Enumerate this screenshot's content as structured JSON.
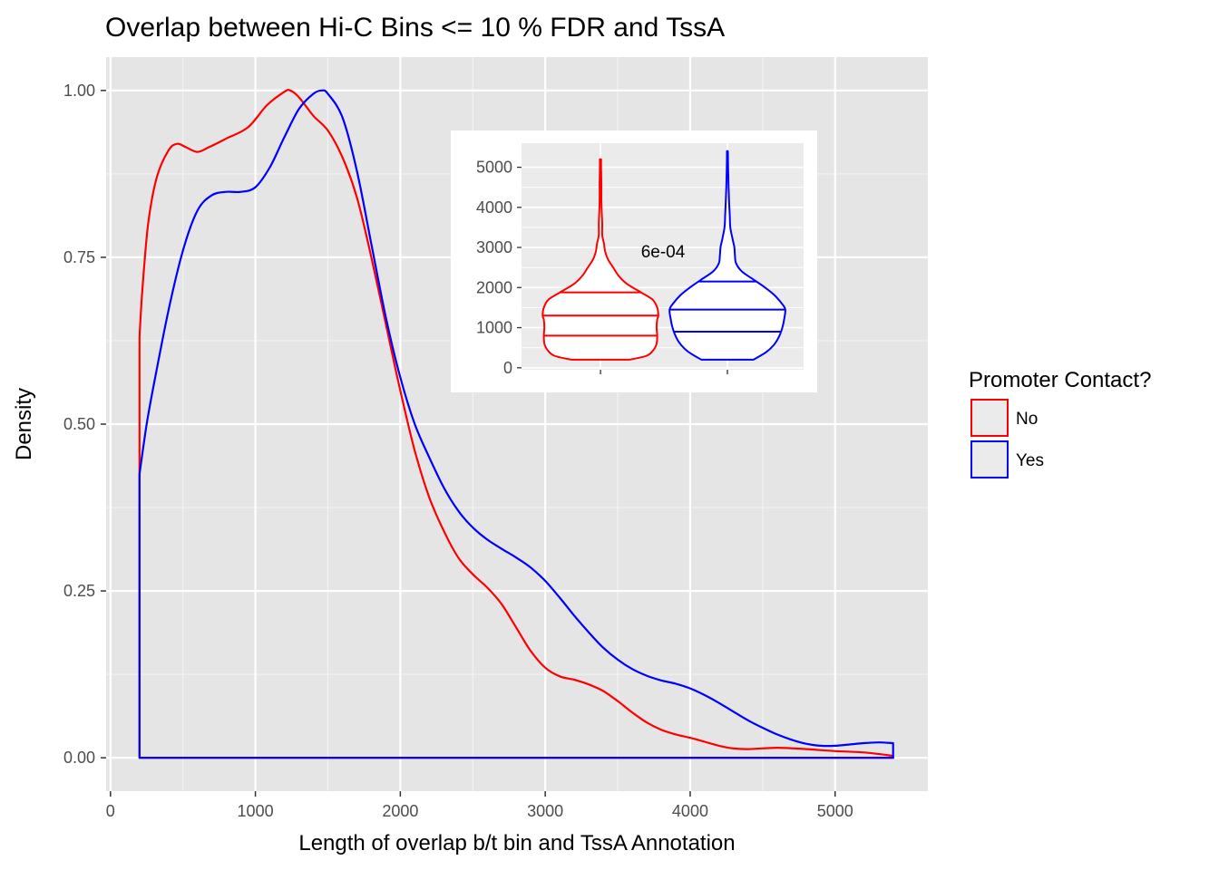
{
  "chart_data": [
    {
      "type": "area",
      "title": "Overlap between Hi-C Bins <= 10 % FDR and TssA",
      "xlabel": "Length of overlap b/t bin and TssA Annotation",
      "ylabel": "Density",
      "xlim": [
        -30,
        5640
      ],
      "ylim": [
        -0.05,
        1.05
      ],
      "xticks": [
        0,
        1000,
        2000,
        3000,
        4000,
        5000
      ],
      "yticks": [
        0.0,
        0.25,
        0.5,
        0.75,
        1.0
      ],
      "xtick_labels": [
        "0",
        "1000",
        "2000",
        "3000",
        "4000",
        "5000"
      ],
      "ytick_labels": [
        "0.00",
        "0.25",
        "0.50",
        "0.75",
        "1.00"
      ],
      "grid": true,
      "background": "#e5e5e5",
      "series": [
        {
          "name": "No",
          "color": "#ff0000",
          "x": [
            200,
            220,
            260,
            320,
            400,
            460,
            520,
            600,
            680,
            800,
            950,
            1080,
            1200,
            1240,
            1300,
            1400,
            1500,
            1600,
            1700,
            1800,
            1900,
            2000,
            2100,
            2200,
            2300,
            2400,
            2500,
            2600,
            2700,
            2800,
            2900,
            3000,
            3100,
            3200,
            3300,
            3400,
            3500,
            3600,
            3700,
            3800,
            3900,
            4000,
            4100,
            4200,
            4300,
            4400,
            4600,
            4800,
            5000,
            5200,
            5400
          ],
          "y": [
            0.63,
            0.7,
            0.8,
            0.87,
            0.91,
            0.92,
            0.915,
            0.908,
            0.915,
            0.928,
            0.945,
            0.978,
            0.998,
            1.0,
            0.99,
            0.962,
            0.94,
            0.9,
            0.84,
            0.75,
            0.65,
            0.55,
            0.46,
            0.39,
            0.34,
            0.3,
            0.275,
            0.255,
            0.23,
            0.195,
            0.16,
            0.135,
            0.122,
            0.117,
            0.11,
            0.1,
            0.085,
            0.068,
            0.053,
            0.042,
            0.035,
            0.03,
            0.024,
            0.018,
            0.014,
            0.013,
            0.015,
            0.013,
            0.01,
            0.008,
            0.003
          ]
        },
        {
          "name": "Yes",
          "color": "#0000ff",
          "x": [
            200,
            250,
            300,
            400,
            500,
            600,
            700,
            800,
            900,
            1000,
            1100,
            1200,
            1300,
            1400,
            1460,
            1500,
            1600,
            1700,
            1800,
            1900,
            2000,
            2100,
            2200,
            2300,
            2400,
            2500,
            2600,
            2700,
            2800,
            2900,
            3000,
            3100,
            3200,
            3300,
            3400,
            3500,
            3600,
            3700,
            3800,
            3900,
            4000,
            4100,
            4200,
            4300,
            4400,
            4500,
            4600,
            4700,
            4800,
            4900,
            5000,
            5100,
            5200,
            5300,
            5400
          ],
          "y": [
            0.425,
            0.5,
            0.56,
            0.67,
            0.76,
            0.82,
            0.843,
            0.848,
            0.848,
            0.855,
            0.885,
            0.93,
            0.972,
            0.995,
            1.0,
            0.995,
            0.96,
            0.88,
            0.77,
            0.66,
            0.57,
            0.5,
            0.45,
            0.405,
            0.37,
            0.345,
            0.327,
            0.313,
            0.3,
            0.285,
            0.265,
            0.24,
            0.213,
            0.188,
            0.165,
            0.147,
            0.133,
            0.123,
            0.116,
            0.111,
            0.104,
            0.094,
            0.082,
            0.069,
            0.056,
            0.045,
            0.035,
            0.027,
            0.021,
            0.018,
            0.018,
            0.02,
            0.022,
            0.023,
            0.022
          ]
        }
      ],
      "legend": {
        "title": "Promoter Contact?",
        "position": "right",
        "entries": [
          {
            "label": "No",
            "color": "#ff0000"
          },
          {
            "label": "Yes",
            "color": "#0000ff"
          }
        ]
      }
    },
    {
      "type": "violin",
      "placement": "inset top-right",
      "ylim": [
        -50,
        5600
      ],
      "yticks": [
        0,
        1000,
        2000,
        3000,
        4000,
        5000
      ],
      "ytick_labels": [
        "0",
        "1000",
        "2000",
        "3000",
        "4000",
        "5000"
      ],
      "xtick_labels": [
        "",
        ""
      ],
      "annotation": "6e-04",
      "grid": true,
      "violins": [
        {
          "name": "No",
          "color": "#ff0000",
          "quantiles": [
            800,
            1300,
            1880
          ],
          "profile": [
            [
              200,
              0.5
            ],
            [
              300,
              0.8
            ],
            [
              450,
              0.92
            ],
            [
              600,
              0.97
            ],
            [
              800,
              0.98
            ],
            [
              1000,
              0.97
            ],
            [
              1200,
              0.98
            ],
            [
              1300,
              1.0
            ],
            [
              1500,
              0.98
            ],
            [
              1700,
              0.9
            ],
            [
              1880,
              0.7
            ],
            [
              2100,
              0.45
            ],
            [
              2300,
              0.31
            ],
            [
              2500,
              0.22
            ],
            [
              2700,
              0.13
            ],
            [
              2900,
              0.08
            ],
            [
              3100,
              0.06
            ],
            [
              3300,
              0.03
            ],
            [
              3600,
              0.03
            ],
            [
              3900,
              0.02
            ],
            [
              4200,
              0.015
            ],
            [
              4600,
              0.015
            ],
            [
              5000,
              0.01
            ],
            [
              5200,
              0.01
            ]
          ]
        },
        {
          "name": "Yes",
          "color": "#0000ff",
          "quantiles": [
            900,
            1450,
            2150
          ],
          "profile": [
            [
              200,
              0.45
            ],
            [
              400,
              0.68
            ],
            [
              600,
              0.82
            ],
            [
              800,
              0.9
            ],
            [
              1000,
              0.95
            ],
            [
              1200,
              0.98
            ],
            [
              1450,
              1.0
            ],
            [
              1600,
              0.94
            ],
            [
              1800,
              0.82
            ],
            [
              2000,
              0.65
            ],
            [
              2200,
              0.45
            ],
            [
              2400,
              0.25
            ],
            [
              2600,
              0.15
            ],
            [
              2800,
              0.13
            ],
            [
              3000,
              0.12
            ],
            [
              3200,
              0.09
            ],
            [
              3500,
              0.05
            ],
            [
              3800,
              0.04
            ],
            [
              4100,
              0.03
            ],
            [
              4500,
              0.02
            ],
            [
              4800,
              0.015
            ],
            [
              5100,
              0.01
            ],
            [
              5400,
              0.008
            ]
          ]
        }
      ]
    }
  ]
}
